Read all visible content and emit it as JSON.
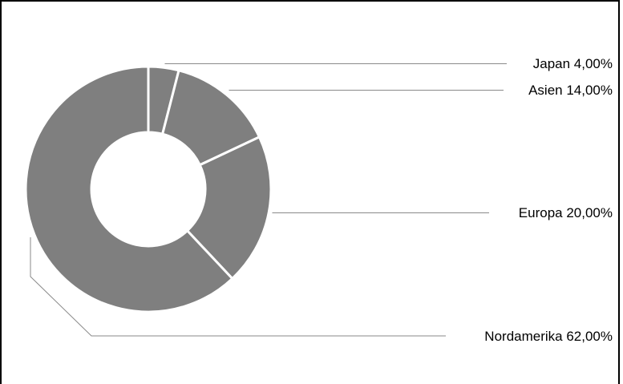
{
  "chart_data": {
    "type": "pie",
    "variant": "donut",
    "title": "",
    "categories": [
      "Japan",
      "Asien",
      "Europa",
      "Nordamerika"
    ],
    "values": [
      4.0,
      14.0,
      20.0,
      62.0
    ],
    "value_labels": [
      "4,00%",
      "14,00%",
      "20,00%",
      "62,00%"
    ],
    "labels": [
      "Japan 4,00%",
      "Asien 14,00%",
      "Europa 20,00%",
      "Nordamerika 62,00%"
    ],
    "legend": "none",
    "colors": {
      "slice": "#7f7f7f",
      "separator": "#ffffff",
      "leader": "#8a8a8a"
    }
  }
}
